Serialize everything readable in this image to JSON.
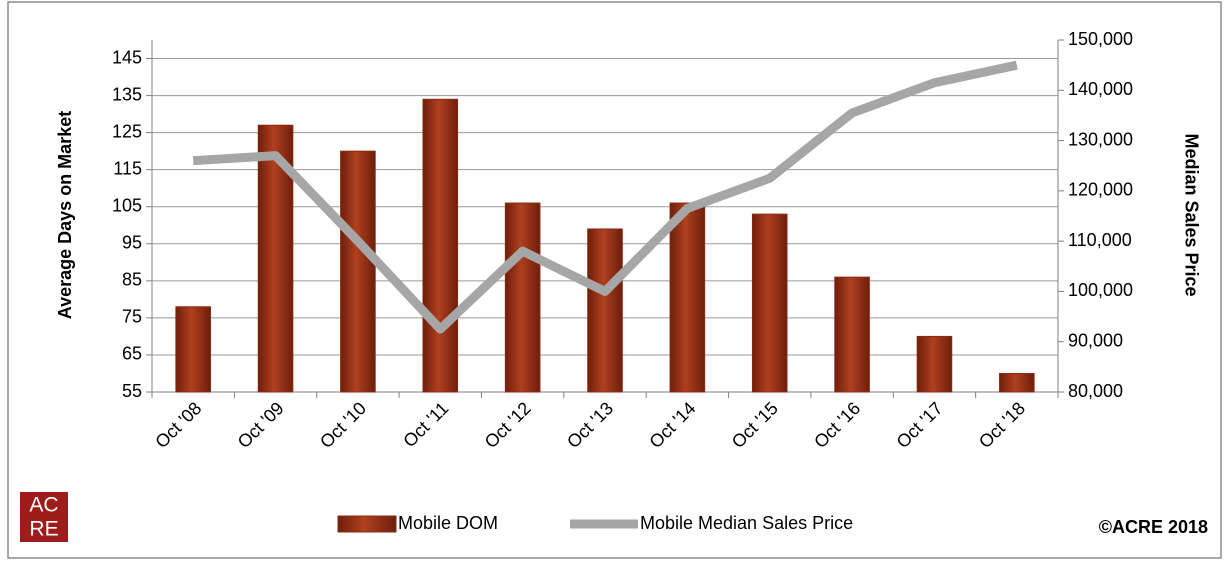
{
  "chart_data": {
    "type": "bar_line",
    "y_label": "Average Days on Market",
    "y2_label": "Median Sales Price",
    "categories": [
      "Oct '08",
      "Oct '09",
      "Oct '10",
      "Oct '11",
      "Oct '12",
      "Oct '13",
      "Oct '14",
      "Oct '15",
      "Oct '16",
      "Oct '17",
      "Oct '18"
    ],
    "series": [
      {
        "name": "Mobile DOM",
        "color": "#8b2a12",
        "type": "bar",
        "axis": "y",
        "values": [
          78,
          127,
          120,
          134,
          106,
          99,
          106,
          103,
          86,
          70,
          60
        ]
      },
      {
        "name": "Mobile Median Sales Price",
        "color": "#a6a6a6",
        "type": "line",
        "axis": "y2",
        "values": [
          126000,
          127000,
          110000,
          92500,
          108000,
          100000,
          116500,
          122500,
          135500,
          141500,
          145000
        ]
      }
    ],
    "ylim": [
      55,
      150
    ],
    "yticks": [
      55,
      65,
      75,
      85,
      95,
      105,
      115,
      125,
      135,
      145
    ],
    "y2lim": [
      80000,
      150000
    ],
    "y2ticks": [
      {
        "value": 80000,
        "label": "80,000"
      },
      {
        "value": 90000,
        "label": "90,000"
      },
      {
        "value": 100000,
        "label": "100,000"
      },
      {
        "value": 110000,
        "label": "110,000"
      },
      {
        "value": 120000,
        "label": "120,000"
      },
      {
        "value": 130000,
        "label": "130,000"
      },
      {
        "value": 140000,
        "label": "140,000"
      },
      {
        "value": 150000,
        "label": "150,000"
      }
    ],
    "grid": true,
    "legend": "bottom"
  },
  "footer": {
    "copyright": "©ACRE 2018",
    "logo": [
      "AC",
      "RE"
    ]
  }
}
